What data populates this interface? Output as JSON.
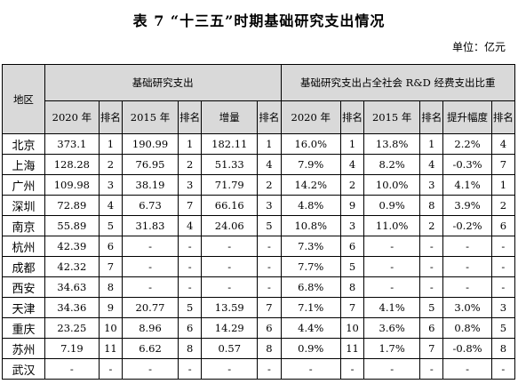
{
  "title": "表 7 “十三五”时期基础研究支出情况",
  "unit": "单位：亿元",
  "headers": {
    "region": "地区",
    "group1": "基础研究支出",
    "group2": "基础研究支出占全社会 R&D 经费支出比重",
    "y2020": "2020 年",
    "rank": "排名",
    "y2015": "2015 年",
    "increase": "增量",
    "lift": "提升幅度"
  },
  "rows": [
    [
      "北京",
      "373.1",
      "1",
      "190.99",
      "1",
      "182.11",
      "1",
      "16.0%",
      "1",
      "13.8%",
      "1",
      "2.2%",
      "4"
    ],
    [
      "上海",
      "128.28",
      "2",
      "76.95",
      "2",
      "51.33",
      "4",
      "7.9%",
      "4",
      "8.2%",
      "4",
      "-0.3%",
      "7"
    ],
    [
      "广州",
      "109.98",
      "3",
      "38.19",
      "3",
      "71.79",
      "2",
      "14.2%",
      "2",
      "10.0%",
      "3",
      "4.1%",
      "1"
    ],
    [
      "深圳",
      "72.89",
      "4",
      "6.73",
      "7",
      "66.16",
      "3",
      "4.8%",
      "9",
      "0.9%",
      "8",
      "3.9%",
      "2"
    ],
    [
      "南京",
      "55.89",
      "5",
      "31.83",
      "4",
      "24.06",
      "5",
      "10.8%",
      "3",
      "11.0%",
      "2",
      "-0.2%",
      "6"
    ],
    [
      "杭州",
      "42.39",
      "6",
      "-",
      "-",
      "-",
      "-",
      "7.3%",
      "6",
      "-",
      "-",
      "-",
      "-"
    ],
    [
      "成都",
      "42.32",
      "7",
      "-",
      "-",
      "-",
      "-",
      "7.7%",
      "5",
      "-",
      "-",
      "-",
      "-"
    ],
    [
      "西安",
      "34.63",
      "8",
      "-",
      "-",
      "-",
      "-",
      "6.8%",
      "8",
      "-",
      "-",
      "-",
      "-"
    ],
    [
      "天津",
      "34.36",
      "9",
      "20.77",
      "5",
      "13.59",
      "7",
      "7.1%",
      "7",
      "4.1%",
      "5",
      "3.0%",
      "3"
    ],
    [
      "重庆",
      "23.25",
      "10",
      "8.96",
      "6",
      "14.29",
      "6",
      "4.4%",
      "10",
      "3.6%",
      "6",
      "0.8%",
      "5"
    ],
    [
      "苏州",
      "7.19",
      "11",
      "6.62",
      "8",
      "0.57",
      "8",
      "0.9%",
      "11",
      "1.7%",
      "7",
      "-0.8%",
      "8"
    ],
    [
      "武汉",
      "-",
      "-",
      "-",
      "-",
      "-",
      "-",
      "-",
      "-",
      "-",
      "-",
      "-",
      "-"
    ]
  ]
}
